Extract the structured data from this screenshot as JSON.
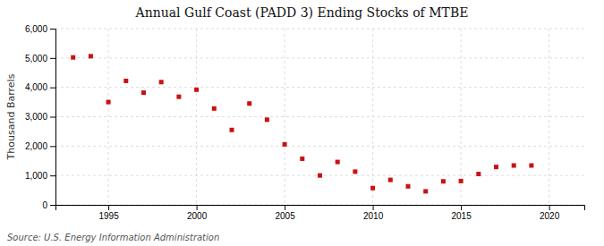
{
  "chart_data": {
    "type": "scatter",
    "title": "Annual Gulf Coast (PADD 3) Ending Stocks of MTBE",
    "ylabel": "Thousand Barrels",
    "annotations": [
      "Source: U.S. Energy Information Administration"
    ],
    "x": [
      1993,
      1994,
      1995,
      1996,
      1997,
      1998,
      1999,
      2000,
      2001,
      2002,
      2003,
      2004,
      2005,
      2006,
      2007,
      2008,
      2009,
      2010,
      2011,
      2012,
      2013,
      2014,
      2015,
      2016,
      2017,
      2018,
      2019
    ],
    "values": [
      5020,
      5060,
      3500,
      4220,
      3820,
      4180,
      3680,
      3920,
      3280,
      2550,
      3450,
      2900,
      2060,
      1570,
      1000,
      1460,
      1130,
      570,
      850,
      630,
      460,
      800,
      810,
      1050,
      1290,
      1340,
      1340
    ],
    "color": "#cc1111",
    "marker": "square",
    "xlim": [
      1992,
      2022
    ],
    "ylim": [
      0,
      6000
    ],
    "xticks": [
      1995,
      2000,
      2005,
      2010,
      2015,
      2020
    ],
    "yticks": [
      0,
      {
        "value": 1000,
        "label": "1,000"
      },
      {
        "value": 2000,
        "label": "2,000"
      },
      {
        "value": 3000,
        "label": "3,000"
      },
      {
        "value": 4000,
        "label": "4,000"
      },
      {
        "value": 5000,
        "label": "5,000"
      },
      {
        "value": 6000,
        "label": "6,000"
      }
    ],
    "grid": true
  }
}
